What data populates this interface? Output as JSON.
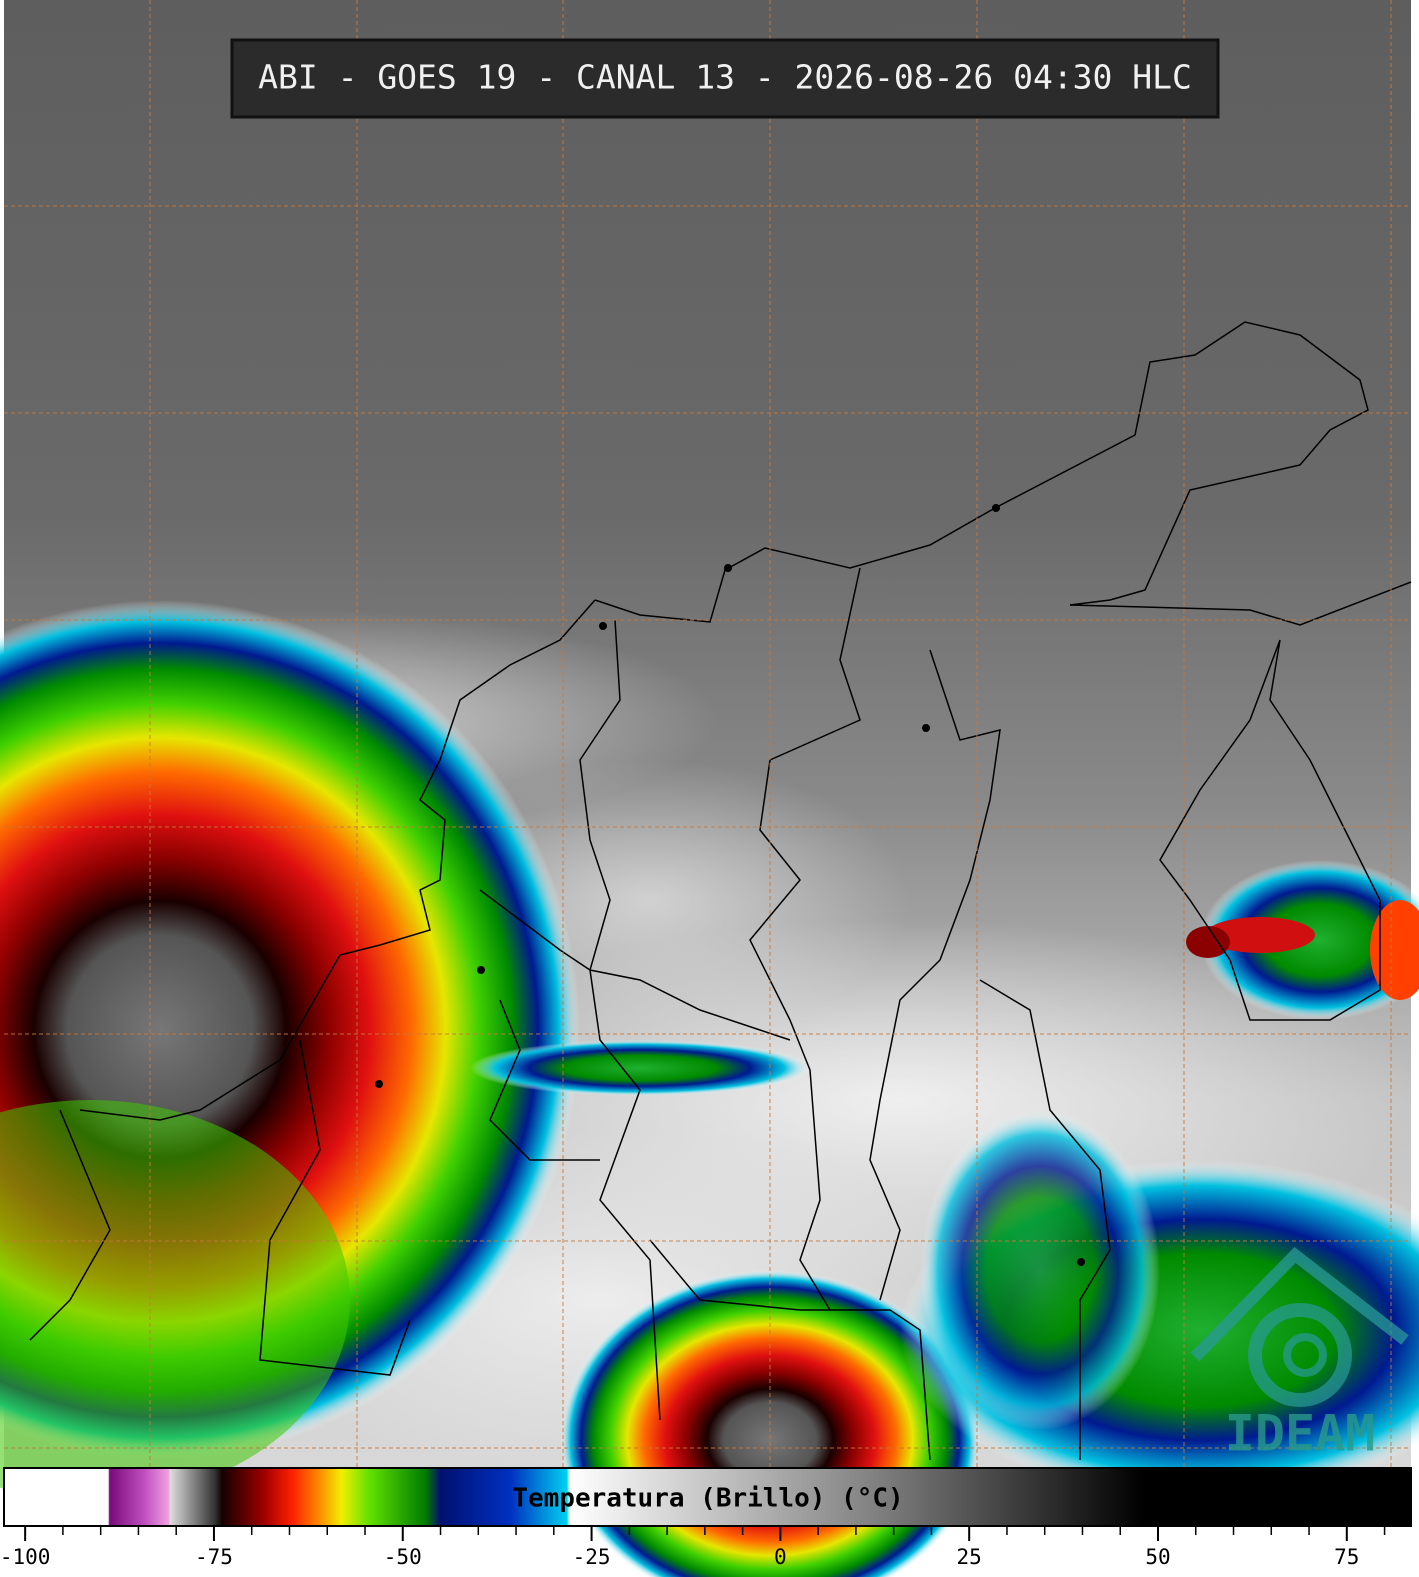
{
  "title": "ABI - GOES 19 - CANAL 13 - 2026-08-26 04:30 HLC",
  "logo": "IDEAM",
  "colorbar": {
    "label": "Temperatura (Brillo) (°C)",
    "lim": [
      -102.8,
      83.5
    ],
    "ticks": [
      -100,
      -75,
      -50,
      -25,
      0,
      25,
      50,
      75
    ],
    "minor_ticks": [
      -95,
      -90,
      -85,
      -80,
      -70,
      -65,
      -60,
      -55,
      -45,
      -40,
      -35,
      -30,
      -20,
      -15,
      -10,
      -5,
      5,
      10,
      15,
      20,
      30,
      35,
      40,
      45,
      55,
      60,
      65,
      70,
      80
    ]
  }
}
